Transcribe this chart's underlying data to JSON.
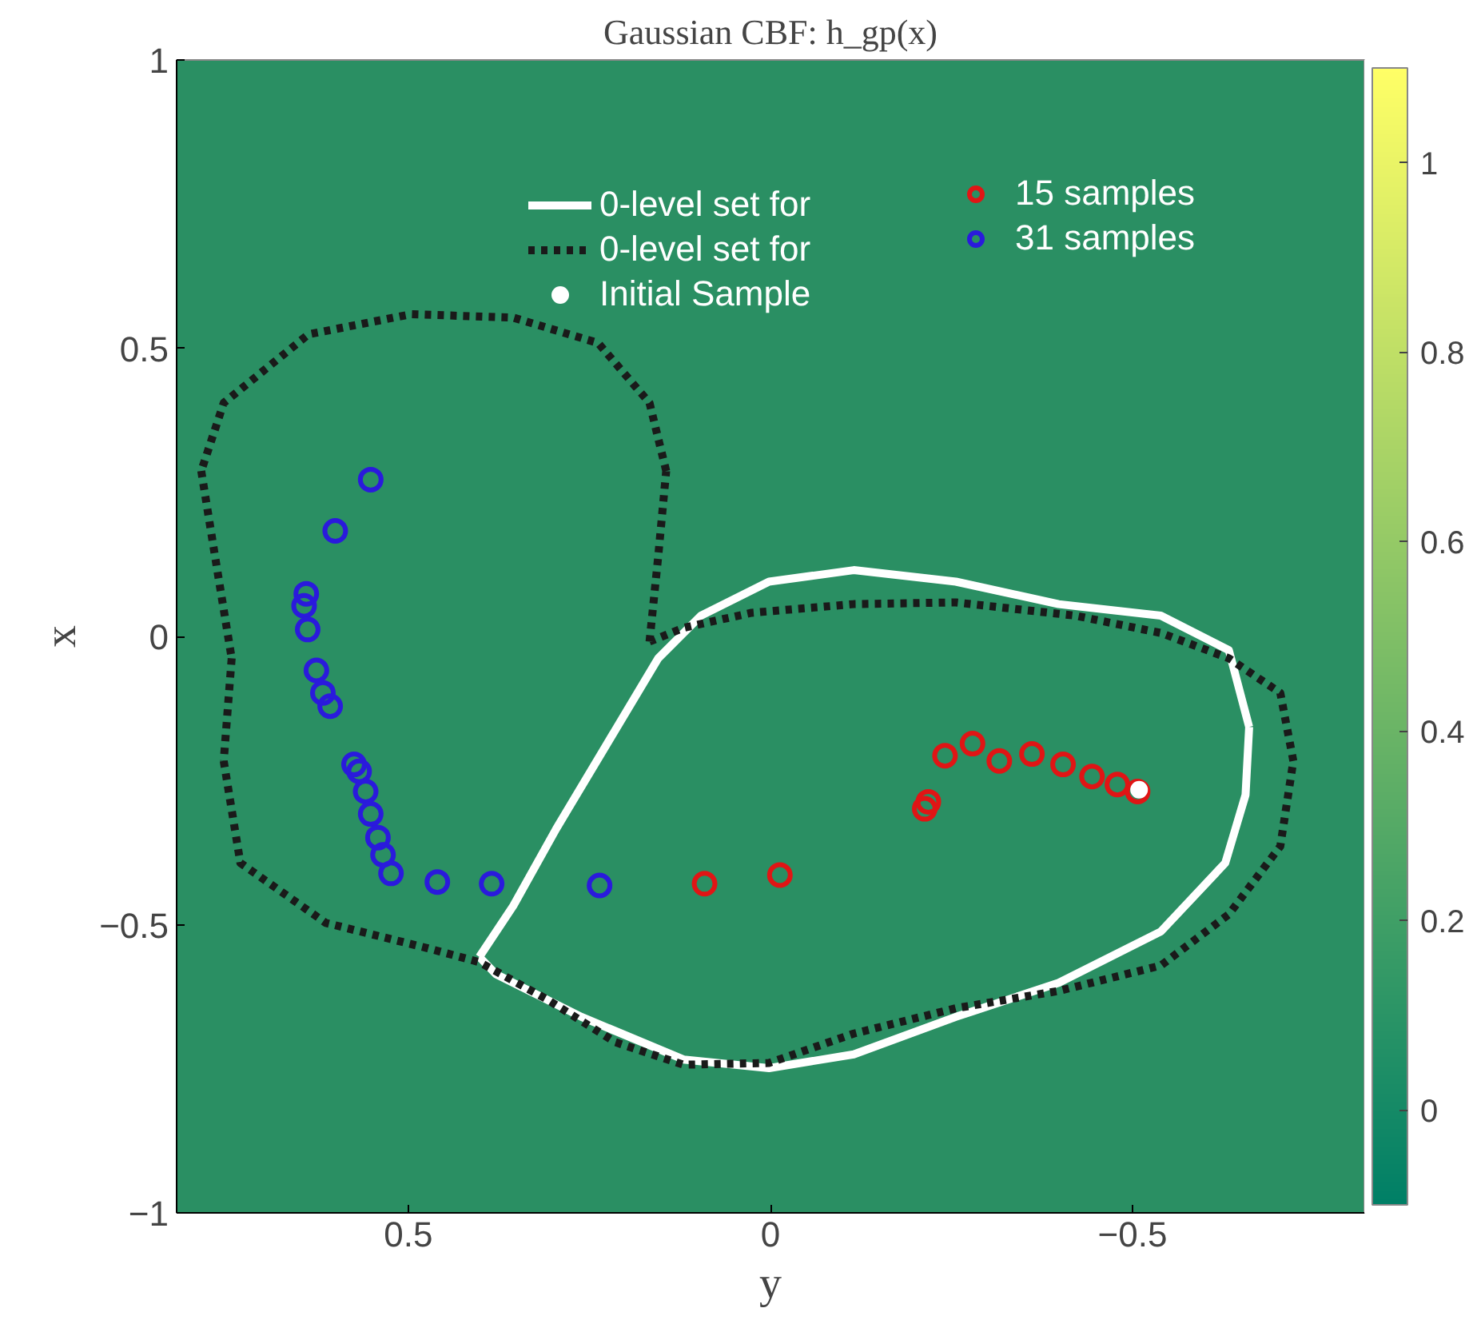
{
  "chart_data": {
    "type": "scatter",
    "title": "Gaussian CBF: h_gp(x)",
    "xlabel": "y",
    "ylabel": "x",
    "xlim": [
      0.82,
      -0.82
    ],
    "ylim": [
      -1,
      1
    ],
    "xticks": [
      0.5,
      0,
      -0.5
    ],
    "yticks": [
      -1,
      -0.5,
      0,
      0.5,
      1
    ],
    "clim": [
      -0.1,
      1.1
    ],
    "cticks": [
      0,
      0.2,
      0.4,
      0.6,
      0.8,
      1
    ],
    "grid": false,
    "legend": "top right",
    "series": [
      {
        "type": "line",
        "name": "0-level set for",
        "color": "#ffffff",
        "line_style": "solid",
        "x": [
          0.402,
          0.355,
          0.296,
          0.226,
          0.155,
          0.096,
          0.002,
          -0.115,
          -0.256,
          -0.398,
          -0.539,
          -0.633,
          -0.661,
          null,
          -0.661,
          -0.656,
          -0.628,
          -0.539,
          -0.398,
          -0.256,
          -0.115,
          0.002,
          0.12,
          0.261,
          0.379,
          0.402
        ],
        "values": [
          -0.556,
          -0.467,
          -0.334,
          -0.187,
          -0.038,
          0.036,
          0.095,
          0.115,
          0.095,
          0.056,
          0.036,
          -0.024,
          -0.157,
          null,
          -0.157,
          -0.275,
          -0.393,
          -0.512,
          -0.601,
          -0.66,
          -0.725,
          -0.749,
          -0.734,
          -0.66,
          -0.586,
          -0.556
        ]
      },
      {
        "type": "line",
        "name": "0-level set for",
        "color": "#1a1a1a",
        "line_style": "dotted",
        "x": [
          0.167,
          0.155,
          0.144,
          null,
          0.144,
          0.167,
          0.238,
          0.355,
          0.496,
          0.638,
          0.755,
          0.786,
          null,
          0.786,
          0.767,
          0.744,
          null,
          0.744,
          0.755,
          null,
          0.755,
          0.732,
          0.614,
          0.473,
          0.402,
          0.308,
          0.214,
          0.12,
          0.002,
          -0.115,
          -0.256,
          -0.398,
          -0.539,
          -0.633,
          -0.704,
          -0.722,
          null,
          -0.722,
          -0.704,
          -0.633,
          -0.539,
          -0.421,
          -0.256,
          -0.115,
          0.026,
          0.12,
          0.167
        ],
        "values": [
          -0.009,
          0.139,
          0.287,
          null,
          0.287,
          0.405,
          0.509,
          0.553,
          0.559,
          0.524,
          0.405,
          0.287,
          null,
          0.287,
          0.139,
          -0.038,
          null,
          -0.038,
          -0.216,
          null,
          -0.216,
          -0.393,
          -0.497,
          -0.541,
          -0.565,
          -0.63,
          -0.704,
          -0.743,
          -0.74,
          -0.689,
          -0.645,
          -0.615,
          -0.571,
          -0.482,
          -0.364,
          -0.216,
          null,
          -0.216,
          -0.098,
          -0.038,
          0.006,
          0.036,
          0.059,
          0.056,
          0.041,
          0.015,
          -0.009
        ]
      },
      {
        "name": "15 samples",
        "color": "#e01515",
        "marker": "circle",
        "x": [
          0.091,
          -0.013,
          -0.213,
          -0.218,
          -0.241,
          -0.279,
          -0.316,
          -0.361,
          -0.404,
          -0.444,
          -0.479,
          -0.507
        ],
        "values": [
          -0.429,
          -0.414,
          -0.299,
          -0.287,
          -0.207,
          -0.186,
          -0.216,
          -0.204,
          -0.222,
          -0.243,
          -0.257,
          -0.269
        ]
      },
      {
        "name": "31 samples",
        "color": "#2a1adc",
        "marker": "circle",
        "x": [
          0.552,
          0.601,
          0.641,
          0.644,
          0.639,
          0.627,
          0.618,
          0.608,
          0.575,
          0.568,
          0.559,
          0.552,
          0.542,
          0.535,
          0.524,
          0.46,
          0.385,
          0.236
        ],
        "values": [
          0.272,
          0.183,
          0.074,
          0.053,
          0.012,
          -0.059,
          -0.098,
          -0.121,
          -0.222,
          -0.234,
          -0.269,
          -0.308,
          -0.349,
          -0.379,
          -0.411,
          -0.426,
          -0.429,
          -0.432
        ]
      },
      {
        "name": "Initial Sample",
        "color": "#ffffff",
        "marker": "circle",
        "x": [
          -0.509
        ],
        "values": [
          -0.266
        ]
      }
    ]
  }
}
